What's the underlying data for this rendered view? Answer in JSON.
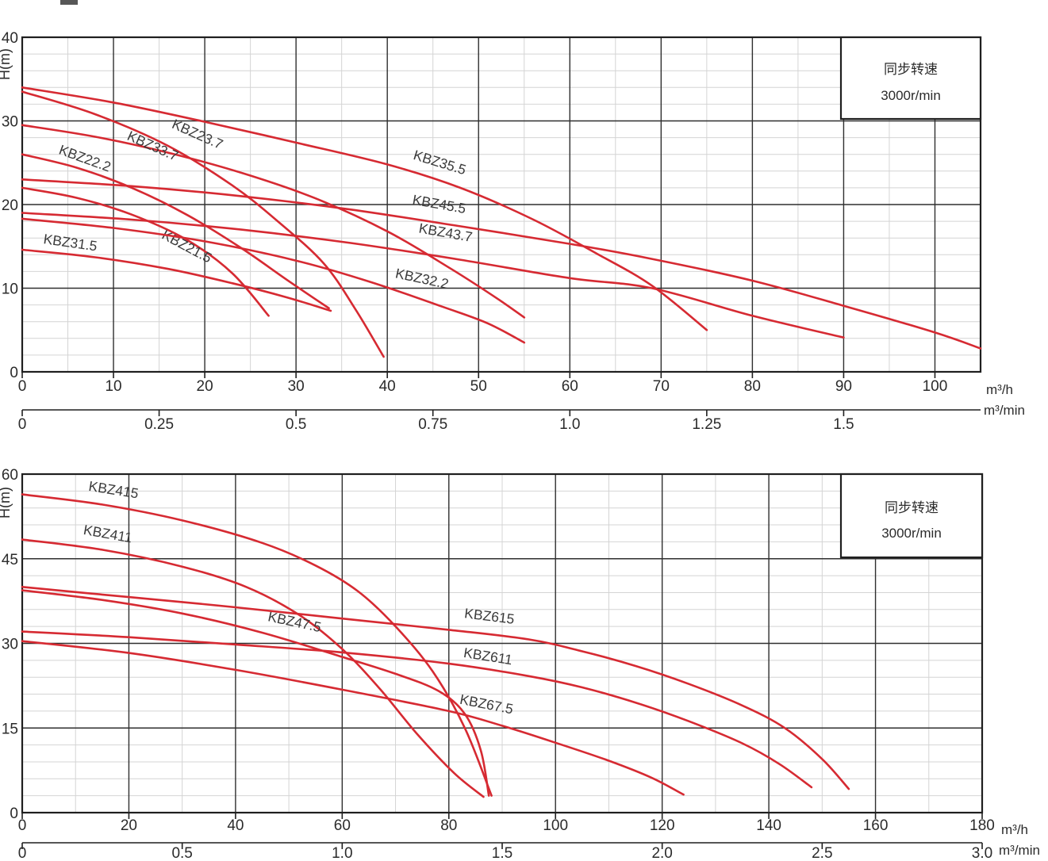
{
  "figure": {
    "description": "KBZ submersible pump performance curves, head H(m) versus flow rate",
    "curve_color": "#d62a32",
    "grid_major_color": "#2f2f2f",
    "grid_minor_color": "#d4d4d4",
    "frame_color": "#1f1f1f",
    "text_color": "#2b2b2b"
  },
  "chart_data": [
    {
      "type": "line",
      "panel": "top",
      "legend_box": {
        "line1": "同步转速",
        "line2": "3000r/min",
        "position": "top-right"
      },
      "grid": true,
      "y_axis": {
        "label": "H(m)",
        "min": 0,
        "max": 40,
        "major_ticks": [
          "0",
          "10",
          "20",
          "30",
          "40"
        ],
        "minor_step": 2
      },
      "x_axis": {
        "unit": "m³/h",
        "min": 0,
        "max": 105,
        "major_ticks": [
          "0",
          "10",
          "20",
          "30",
          "40",
          "50",
          "60",
          "70",
          "80",
          "90",
          "100"
        ],
        "minor_step": 5
      },
      "x_axis_secondary": {
        "unit": "m³/min",
        "ticks": [
          "0",
          "0.25",
          "0.5",
          "0.75",
          "1.0",
          "1.25",
          "1.5"
        ],
        "scale_to_primary": 60
      },
      "series": [
        {
          "name": "KBZ21.5",
          "label_q": 17.8,
          "label_h": 14.5,
          "label_angle": 28,
          "points": [
            [
              0,
              22
            ],
            [
              6,
              20.8
            ],
            [
              12,
              18.8
            ],
            [
              18,
              15.8
            ],
            [
              23,
              11.8
            ],
            [
              27,
              6.7
            ]
          ]
        },
        {
          "name": "KBZ22.2",
          "label_q": 6.7,
          "label_h": 25.0,
          "label_angle": 20,
          "points": [
            [
              0,
              26
            ],
            [
              6,
              24.4
            ],
            [
              12,
              22
            ],
            [
              18,
              18.8
            ],
            [
              24,
              14.8
            ],
            [
              29,
              11
            ],
            [
              33.6,
              7.6
            ]
          ]
        },
        {
          "name": "KBZ23.7",
          "label_q": 19.0,
          "label_h": 27.9,
          "label_angle": 24,
          "points": [
            [
              0,
              33.5
            ],
            [
              8,
              30.8
            ],
            [
              16,
              27
            ],
            [
              23,
              22.3
            ],
            [
              28,
              18
            ],
            [
              33,
              13
            ],
            [
              36.5,
              7.5
            ],
            [
              39.6,
              1.8
            ]
          ]
        },
        {
          "name": "KBZ31.5",
          "label_q": 5.2,
          "label_h": 14.9,
          "label_angle": 8,
          "points": [
            [
              0,
              14.6
            ],
            [
              8,
              13.7
            ],
            [
              16,
              12.3
            ],
            [
              23,
              10.6
            ],
            [
              29,
              8.9
            ],
            [
              33.8,
              7.3
            ]
          ]
        },
        {
          "name": "KBZ32.2",
          "label_q": 43.7,
          "label_h": 10.6,
          "label_angle": 12,
          "points": [
            [
              0,
              18.3
            ],
            [
              10,
              17.2
            ],
            [
              20,
              15.6
            ],
            [
              30,
              13.3
            ],
            [
              38,
              10.8
            ],
            [
              46,
              7.8
            ],
            [
              51,
              5.8
            ],
            [
              55,
              3.5
            ]
          ]
        },
        {
          "name": "KBZ33.7",
          "label_q": 14.1,
          "label_h": 26.5,
          "label_angle": 24,
          "points": [
            [
              0,
              29.5
            ],
            [
              8,
              28.1
            ],
            [
              16,
              26.2
            ],
            [
              24,
              23.8
            ],
            [
              32,
              20.8
            ],
            [
              40,
              16.8
            ],
            [
              47,
              12.3
            ],
            [
              52,
              8.8
            ],
            [
              55,
              6.5
            ]
          ]
        },
        {
          "name": "KBZ35.5",
          "label_q": 45.6,
          "label_h": 24.5,
          "label_angle": 17,
          "points": [
            [
              0,
              34
            ],
            [
              10,
              32.2
            ],
            [
              20,
              29.9
            ],
            [
              30,
              27.4
            ],
            [
              40,
              24.8
            ],
            [
              48,
              22
            ],
            [
              56,
              18.2
            ],
            [
              63,
              14.1
            ],
            [
              69,
              10.3
            ],
            [
              75,
              5
            ]
          ]
        },
        {
          "name": "KBZ43.7",
          "label_q": 46.3,
          "label_h": 16.1,
          "label_angle": 10,
          "points": [
            [
              0,
              19
            ],
            [
              12,
              18.2
            ],
            [
              24,
              17
            ],
            [
              36,
              15.4
            ],
            [
              48,
              13.4
            ],
            [
              60,
              11.2
            ],
            [
              69,
              10
            ],
            [
              80,
              6.7
            ],
            [
              90,
              4.1
            ]
          ]
        },
        {
          "name": "KBZ45.5",
          "label_q": 45.6,
          "label_h": 19.5,
          "label_angle": 10,
          "points": [
            [
              0,
              23
            ],
            [
              12,
              22.2
            ],
            [
              24,
              21
            ],
            [
              36,
              19.4
            ],
            [
              48,
              17.4
            ],
            [
              60,
              15.3
            ],
            [
              69,
              13.5
            ],
            [
              80,
              10.9
            ],
            [
              90,
              7.9
            ],
            [
              100,
              4.7
            ],
            [
              105,
              2.8
            ]
          ]
        }
      ]
    },
    {
      "type": "line",
      "panel": "bottom",
      "legend_box": {
        "line1": "同步转速",
        "line2": "3000r/min",
        "position": "top-right"
      },
      "grid": true,
      "y_axis": {
        "label": "H(m)",
        "min": 0,
        "max": 60,
        "major_ticks": [
          "0",
          "15",
          "30",
          "45",
          "60"
        ],
        "minor_step": 3
      },
      "x_axis": {
        "unit": "m³/h",
        "min": 0,
        "max": 180,
        "major_ticks": [
          "0",
          "20",
          "40",
          "60",
          "80",
          "100",
          "120",
          "140",
          "160",
          "180"
        ],
        "minor_step": 10
      },
      "x_axis_secondary": {
        "unit": "m³/min",
        "ticks": [
          "0",
          "0.5",
          "1.0",
          "1.5",
          "2.0",
          "2.5",
          "3.0"
        ],
        "scale_to_primary": 60
      },
      "series": [
        {
          "name": "KBZ415",
          "label_q": 17.0,
          "label_h": 56.4,
          "label_angle": 9,
          "points": [
            [
              0,
              56.4
            ],
            [
              15,
              54.6
            ],
            [
              30,
              51.8
            ],
            [
              45,
              47.8
            ],
            [
              55,
              43.8
            ],
            [
              63,
              39.2
            ],
            [
              70,
              33
            ],
            [
              77,
              25
            ],
            [
              83,
              15
            ],
            [
              88,
              3
            ]
          ]
        },
        {
          "name": "KBZ411",
          "label_q": 15.9,
          "label_h": 48.6,
          "label_angle": 10,
          "points": [
            [
              0,
              48.4
            ],
            [
              15,
              46.6
            ],
            [
              30,
              43.6
            ],
            [
              42,
              40
            ],
            [
              52,
              35
            ],
            [
              60,
              29
            ],
            [
              67,
              22
            ],
            [
              74,
              14
            ],
            [
              81,
              7
            ],
            [
              86.5,
              2.8
            ]
          ]
        },
        {
          "name": "KBZ47.5",
          "label_q": 50.9,
          "label_h": 33.0,
          "label_angle": 12,
          "points": [
            [
              0,
              39.4
            ],
            [
              15,
              37.7
            ],
            [
              30,
              35.3
            ],
            [
              45,
              31.9
            ],
            [
              60,
              27.6
            ],
            [
              70,
              24.6
            ],
            [
              78,
              21.6
            ],
            [
              83,
              17.5
            ],
            [
              86,
              11
            ],
            [
              87.5,
              3
            ]
          ]
        },
        {
          "name": "KBZ615",
          "label_q": 87.5,
          "label_h": 34.0,
          "label_angle": 7,
          "points": [
            [
              0,
              40
            ],
            [
              20,
              38.2
            ],
            [
              40,
              36.4
            ],
            [
              60,
              34.4
            ],
            [
              80,
              32.4
            ],
            [
              95,
              30.7
            ],
            [
              105,
              28.6
            ],
            [
              115,
              26
            ],
            [
              125,
              22.8
            ],
            [
              135,
              19
            ],
            [
              143,
              15
            ],
            [
              150,
              9.5
            ],
            [
              155,
              4.2
            ]
          ]
        },
        {
          "name": "KBZ611",
          "label_q": 87.2,
          "label_h": 26.9,
          "label_angle": 9,
          "points": [
            [
              0,
              32.1
            ],
            [
              20,
              31.1
            ],
            [
              40,
              29.8
            ],
            [
              60,
              28.4
            ],
            [
              80,
              26.4
            ],
            [
              95,
              24.2
            ],
            [
              105,
              22.2
            ],
            [
              115,
              19.5
            ],
            [
              125,
              16.2
            ],
            [
              135,
              12.3
            ],
            [
              142,
              8.6
            ],
            [
              148,
              4.5
            ]
          ]
        },
        {
          "name": "KBZ67.5",
          "label_q": 86.9,
          "label_h": 18.4,
          "label_angle": 11,
          "points": [
            [
              0,
              30.4
            ],
            [
              20,
              28.3
            ],
            [
              40,
              25.3
            ],
            [
              60,
              21.8
            ],
            [
              80,
              18
            ],
            [
              90,
              15.4
            ],
            [
              100,
              12.4
            ],
            [
              110,
              9.2
            ],
            [
              118,
              6.2
            ],
            [
              124,
              3.2
            ]
          ]
        }
      ]
    }
  ]
}
